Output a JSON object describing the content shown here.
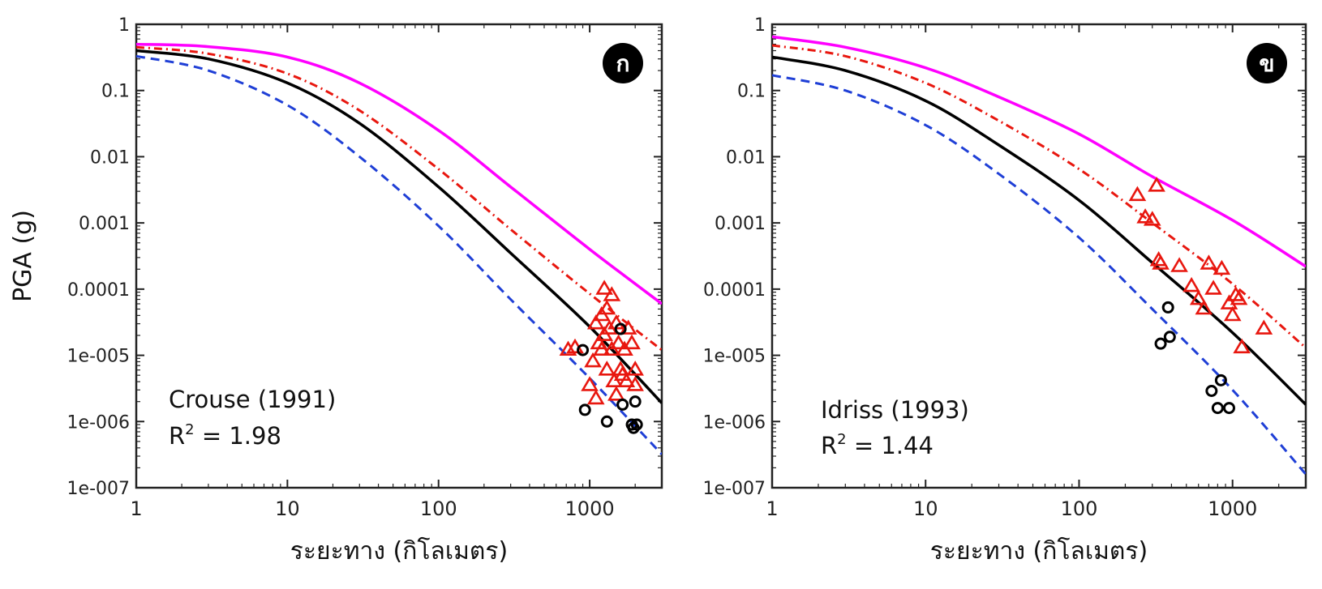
{
  "chart_data": [
    {
      "type": "scatter",
      "panel_label": "ก",
      "xlabel": "ระยะทาง (กิโลเมตร)",
      "ylabel": "PGA (g)",
      "x_scale": "log",
      "y_scale": "log",
      "xlim": [
        1,
        3000
      ],
      "ylim": [
        1e-07,
        1
      ],
      "x_ticks": [
        "1",
        "10",
        "100",
        "1000"
      ],
      "y_ticks": [
        "1e-007",
        "1e-006",
        "1e-005",
        "0.0001",
        "0.001",
        "0.01",
        "0.1",
        "1"
      ],
      "annotation_model": "Crouse (1991)",
      "annotation_r_prefix": "R",
      "annotation_r_sup": "2",
      "annotation_r_value": " = 1.98",
      "series": [
        {
          "style": "solid",
          "color": "#ff00ff",
          "x": [
            1,
            3,
            10,
            30,
            100,
            300,
            1000,
            3000
          ],
          "y": [
            0.5,
            0.46,
            0.32,
            0.13,
            0.025,
            0.0035,
            0.0004,
            6e-05
          ]
        },
        {
          "style": "dashdot",
          "color": "#e8170f",
          "x": [
            1,
            3,
            10,
            30,
            100,
            300,
            1000,
            3000
          ],
          "y": [
            0.45,
            0.36,
            0.18,
            0.05,
            0.0065,
            0.0008,
            8.5e-05,
            1.2e-05
          ]
        },
        {
          "style": "solid",
          "color": "#000000",
          "x": [
            1,
            3,
            10,
            30,
            100,
            300,
            1000,
            3000
          ],
          "y": [
            0.4,
            0.3,
            0.13,
            0.032,
            0.0035,
            0.00035,
            2.7e-05,
            1.9e-06
          ]
        },
        {
          "style": "dashed",
          "color": "#1f3fd6",
          "x": [
            1,
            3,
            10,
            30,
            100,
            300,
            1000,
            3000
          ],
          "y": [
            0.33,
            0.2,
            0.06,
            0.01,
            0.0009,
            7e-05,
            4.5e-06,
            3.2e-07
          ]
        },
        {
          "marker": "triangle",
          "color": "#e8170f",
          "x": [
            720,
            800,
            1000,
            1050,
            1100,
            1150,
            1200,
            1200,
            1250,
            1300,
            1300,
            1350,
            1400,
            1400,
            1450,
            1500,
            1500,
            1550,
            1600,
            1650,
            1700,
            1750,
            1800,
            1900,
            2000,
            2000,
            1100,
            1250
          ],
          "y": [
            1.2e-05,
            1.3e-05,
            3.5e-06,
            8e-06,
            3e-05,
            1.5e-05,
            4e-05,
            1.2e-05,
            0.0001,
            5e-05,
            6e-06,
            2.5e-05,
            8e-05,
            1.2e-05,
            4e-06,
            3e-05,
            2.5e-06,
            1.5e-05,
            6e-06,
            5e-06,
            1.2e-05,
            4e-06,
            2.5e-05,
            1.5e-05,
            6e-06,
            3.5e-06,
            2.2e-06,
            2e-05
          ]
        },
        {
          "marker": "circle",
          "color": "#000000",
          "x": [
            900,
            930,
            1300,
            1600,
            1650,
            1900,
            2000,
            2050,
            1950
          ],
          "y": [
            1.2e-05,
            1.5e-06,
            1e-06,
            2.5e-05,
            1.8e-06,
            9e-07,
            2e-06,
            9e-07,
            8e-07
          ]
        }
      ]
    },
    {
      "type": "scatter",
      "panel_label": "ข",
      "xlabel": "ระยะทาง (กิโลเมตร)",
      "ylabel": "",
      "x_scale": "log",
      "y_scale": "log",
      "xlim": [
        1,
        3000
      ],
      "ylim": [
        1e-07,
        1
      ],
      "x_ticks": [
        "1",
        "10",
        "100",
        "1000"
      ],
      "y_ticks": [
        "1e-007",
        "1e-006",
        "1e-005",
        "0.0001",
        "0.001",
        "0.01",
        "0.1",
        "1"
      ],
      "annotation_model": "Idriss (1993)",
      "annotation_r_prefix": "R",
      "annotation_r_sup": "2",
      "annotation_r_value": " = 1.44",
      "series": [
        {
          "style": "solid",
          "color": "#ff00ff",
          "x": [
            1,
            3,
            10,
            30,
            100,
            300,
            1000,
            3000
          ],
          "y": [
            0.65,
            0.45,
            0.22,
            0.08,
            0.022,
            0.005,
            0.0011,
            0.00022
          ]
        },
        {
          "style": "dashdot",
          "color": "#e8170f",
          "x": [
            1,
            3,
            10,
            30,
            100,
            300,
            1000,
            3000
          ],
          "y": [
            0.48,
            0.33,
            0.13,
            0.035,
            0.0065,
            0.001,
            0.00012,
            1.3e-05
          ]
        },
        {
          "style": "solid",
          "color": "#000000",
          "x": [
            1,
            3,
            10,
            30,
            100,
            300,
            1000,
            3000
          ],
          "y": [
            0.32,
            0.2,
            0.07,
            0.015,
            0.0022,
            0.00025,
            2.2e-05,
            1.8e-06
          ]
        },
        {
          "style": "dashed",
          "color": "#1f3fd6",
          "x": [
            1,
            3,
            10,
            30,
            100,
            300,
            1000,
            3000
          ],
          "y": [
            0.17,
            0.1,
            0.03,
            0.0055,
            0.0006,
            5e-05,
            3e-06,
            1.6e-07
          ]
        },
        {
          "marker": "triangle",
          "color": "#e8170f",
          "x": [
            240,
            270,
            300,
            320,
            330,
            340,
            450,
            540,
            600,
            650,
            700,
            750,
            850,
            950,
            1000,
            1050,
            1100,
            1150,
            1600
          ],
          "y": [
            0.0026,
            0.0012,
            0.0011,
            0.0036,
            0.00027,
            0.00024,
            0.00022,
            0.00011,
            7e-05,
            5e-05,
            0.00024,
            0.0001,
            0.0002,
            6e-05,
            4e-05,
            8e-05,
            7e-05,
            1.3e-05,
            2.5e-05
          ]
        },
        {
          "marker": "circle",
          "color": "#000000",
          "x": [
            340,
            380,
            390,
            730,
            800,
            840,
            950
          ],
          "y": [
            1.5e-05,
            5.3e-05,
            1.9e-05,
            2.9e-06,
            1.6e-06,
            4.2e-06,
            1.6e-06
          ]
        }
      ]
    }
  ]
}
